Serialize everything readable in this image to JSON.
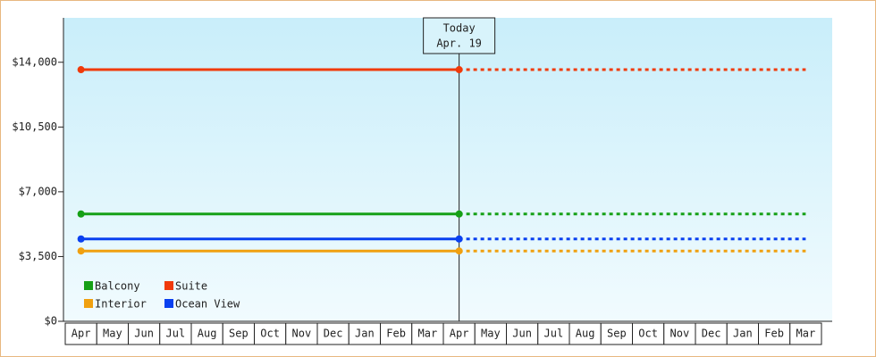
{
  "chart_data": {
    "type": "line",
    "categories": [
      "Apr",
      "May",
      "Jun",
      "Jul",
      "Aug",
      "Sep",
      "Oct",
      "Nov",
      "Dec",
      "Jan",
      "Feb",
      "Mar",
      "Apr",
      "May",
      "Jun",
      "Jul",
      "Aug",
      "Sep",
      "Oct",
      "Nov",
      "Dec",
      "Jan",
      "Feb",
      "Mar"
    ],
    "series": [
      {
        "name": "Balcony",
        "color": "#16a016",
        "values": [
          5800,
          5800,
          5800,
          5800,
          5800,
          5800,
          5800,
          5800,
          5800,
          5800,
          5800,
          5800,
          5800,
          5800,
          5800,
          5800,
          5800,
          5800,
          5800,
          5800,
          5800,
          5800,
          5800,
          5800
        ]
      },
      {
        "name": "Suite",
        "color": "#f03a0a",
        "values": [
          13600,
          13600,
          13600,
          13600,
          13600,
          13600,
          13600,
          13600,
          13600,
          13600,
          13600,
          13600,
          13600,
          13600,
          13600,
          13600,
          13600,
          13600,
          13600,
          13600,
          13600,
          13600,
          13600,
          13600
        ]
      },
      {
        "name": "Interior",
        "color": "#f0a010",
        "values": [
          3800,
          3800,
          3800,
          3800,
          3800,
          3800,
          3800,
          3800,
          3800,
          3800,
          3800,
          3800,
          3800,
          3800,
          3800,
          3800,
          3800,
          3800,
          3800,
          3800,
          3800,
          3800,
          3800,
          3800
        ]
      },
      {
        "name": "Ocean View",
        "color": "#0a40f0",
        "values": [
          4450,
          4450,
          4450,
          4450,
          4450,
          4450,
          4450,
          4450,
          4450,
          4450,
          4450,
          4450,
          4450,
          4450,
          4450,
          4450,
          4450,
          4450,
          4450,
          4450,
          4450,
          4450,
          4450,
          4450
        ]
      }
    ],
    "today": {
      "index": 12,
      "label": [
        "Today",
        "Apr. 19"
      ]
    },
    "ylim": [
      0,
      16400
    ],
    "yticks": [
      {
        "value": 0,
        "label": "$0"
      },
      {
        "value": 3500,
        "label": "$3,500"
      },
      {
        "value": 7000,
        "label": "$7,000"
      },
      {
        "value": 10500,
        "label": "$10,500"
      },
      {
        "value": 14000,
        "label": "$14,000"
      }
    ],
    "legend": "bottom-left"
  }
}
